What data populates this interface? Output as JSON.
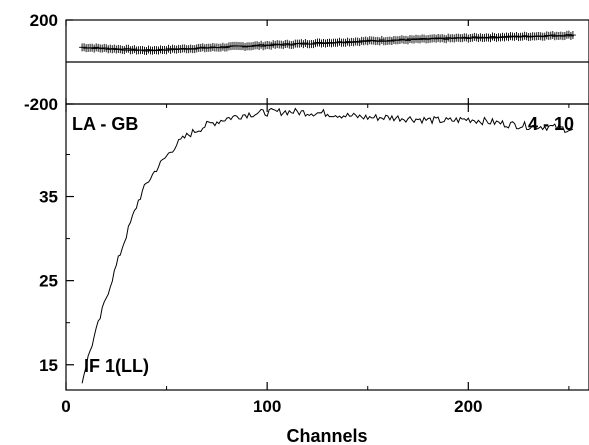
{
  "chart_data": [
    {
      "panel": "phase",
      "type": "scatter",
      "marker": "plus",
      "ylim": [
        -200,
        200
      ],
      "xlim": [
        0,
        260
      ],
      "yticks": [
        200,
        -200
      ],
      "ytick_labels": [
        "200",
        "-200"
      ],
      "reference_line_y": 0,
      "series": [
        {
          "x": [
            8,
            40,
            100,
            150,
            200,
            252
          ],
          "y": [
            70,
            55,
            80,
            100,
            115,
            128
          ]
        }
      ]
    },
    {
      "panel": "amplitude",
      "type": "line",
      "xlim": [
        0,
        260
      ],
      "ylim": [
        12,
        46
      ],
      "yticks": [
        15,
        25,
        35
      ],
      "ytick_labels": [
        "15",
        "25",
        "35"
      ],
      "xticks": [
        0,
        100,
        200
      ],
      "xtick_labels": [
        "0",
        "100",
        "200"
      ],
      "xlabel": "Channels",
      "series": [
        {
          "x": [
            8,
            10,
            13,
            16,
            20,
            24,
            28,
            32,
            36,
            40,
            45,
            50,
            55,
            60,
            65,
            70,
            80,
            90,
            100,
            110,
            120,
            130,
            140,
            150,
            160,
            170,
            180,
            190,
            200,
            210,
            220,
            230,
            240,
            250,
            252
          ],
          "y": [
            13,
            15,
            17.5,
            19.8,
            23,
            26,
            29,
            31.8,
            34.5,
            36.5,
            38.3,
            39.8,
            41.2,
            42.2,
            42.9,
            43.5,
            44.3,
            44.8,
            45.0,
            45.1,
            45.0,
            44.9,
            44.6,
            44.4,
            44.4,
            44.3,
            44.1,
            44.0,
            44.2,
            43.9,
            43.6,
            43.4,
            43.3,
            43.0,
            42.8
          ]
        }
      ]
    }
  ],
  "labels": {
    "baseline": "LA - GB",
    "scan": "4 - 10",
    "ifpol": "IF 1(LL)"
  }
}
